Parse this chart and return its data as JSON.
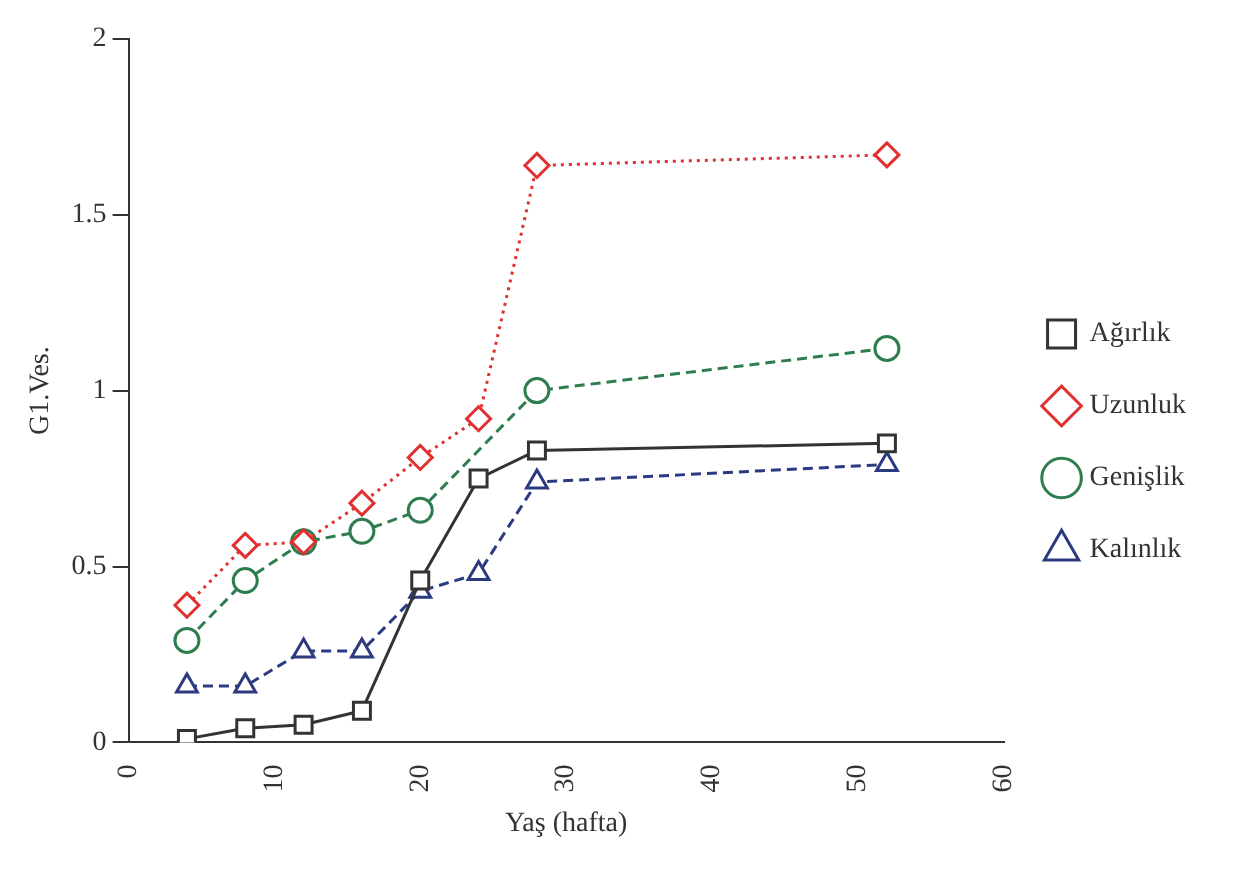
{
  "chart_data": {
    "type": "line",
    "xlabel": "Yaş (hafta)",
    "ylabel": "G1.Ves.",
    "x": [
      4,
      8,
      12,
      16,
      20,
      24,
      28,
      52
    ],
    "xlim": [
      0,
      60
    ],
    "xticks": [
      0,
      10,
      20,
      30,
      40,
      50,
      60
    ],
    "ylim": [
      0,
      2
    ],
    "yticks": [
      0,
      0.5,
      1,
      1.5,
      2
    ],
    "grid": false,
    "legend": "right",
    "series": [
      {
        "name": "Ağırlık",
        "color": "#333333",
        "marker": "square",
        "line_style": "solid",
        "values": [
          0.01,
          0.04,
          0.05,
          0.09,
          0.46,
          0.75,
          0.83,
          0.85
        ]
      },
      {
        "name": "Uzunluk",
        "color": "#e03030",
        "marker": "diamond",
        "line_style": "dotted",
        "values": [
          0.39,
          0.56,
          0.57,
          0.68,
          0.81,
          0.92,
          1.64,
          1.67
        ]
      },
      {
        "name": "Genişlik",
        "color": "#2e7d4f",
        "marker": "circle",
        "line_style": "dashed",
        "x": [
          4,
          8,
          12,
          16,
          20,
          28,
          52
        ],
        "values": [
          0.29,
          0.46,
          0.57,
          0.6,
          0.66,
          1.0,
          1.12
        ]
      },
      {
        "name": "Kalınlık",
        "color": "#2c3a80",
        "marker": "triangle",
        "line_style": "dashed",
        "values": [
          0.16,
          0.16,
          0.26,
          0.26,
          0.43,
          0.48,
          0.74,
          0.79
        ]
      }
    ]
  }
}
